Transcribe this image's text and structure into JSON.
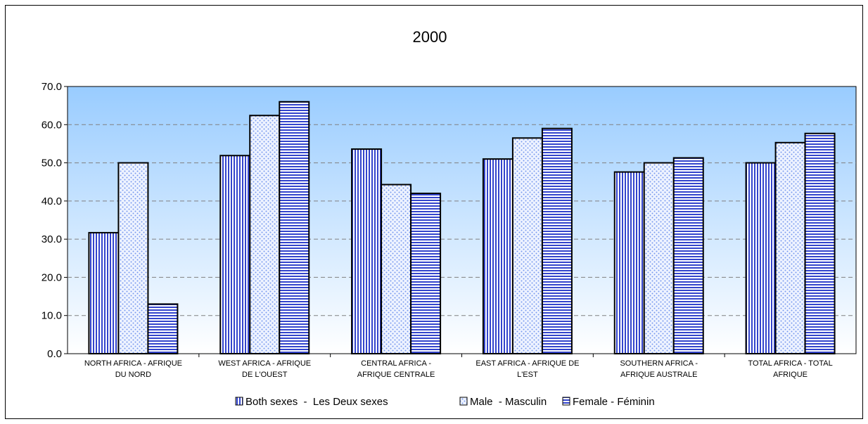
{
  "chart_data": {
    "type": "bar",
    "title": "2000",
    "xlabel": "",
    "ylabel": "",
    "ylim": [
      0,
      70
    ],
    "ytick_step": 10,
    "ytick_labels": [
      "0.0",
      "10.0",
      "20.0",
      "30.0",
      "40.0",
      "50.0",
      "60.0",
      "70.0"
    ],
    "grid": true,
    "legend_position": "bottom",
    "categories": [
      [
        "NORTH AFRICA - AFRIQUE",
        "DU NORD"
      ],
      [
        "WEST AFRICA - AFRIQUE",
        "DE  L'OUEST"
      ],
      [
        "CENTRAL AFRICA -",
        "AFRIQUE CENTRALE"
      ],
      [
        "EAST AFRICA - AFRIQUE DE",
        "L'EST"
      ],
      [
        "SOUTHERN AFRICA -",
        "AFRIQUE AUSTRALE"
      ],
      [
        "TOTAL AFRICA - TOTAL",
        "AFRIQUE"
      ]
    ],
    "series": [
      {
        "name": "Both sexes  -  Les Deux sexes",
        "pattern": "vertical",
        "values": [
          31.7,
          51.9,
          53.6,
          51.0,
          47.6,
          50.0
        ]
      },
      {
        "name": "Male  - Masculin",
        "pattern": "dots",
        "values": [
          50.0,
          62.4,
          44.3,
          56.5,
          50.0,
          55.3
        ]
      },
      {
        "name": "Female - Féminin",
        "pattern": "horizontal",
        "values": [
          13.0,
          66.0,
          42.0,
          59.0,
          51.3,
          57.7
        ]
      }
    ],
    "colors": {
      "bar_fill": "#ffffff",
      "bar_stripe": "#3344cc",
      "plot_top": "#99ccff",
      "plot_bottom": "#ffffff"
    }
  }
}
